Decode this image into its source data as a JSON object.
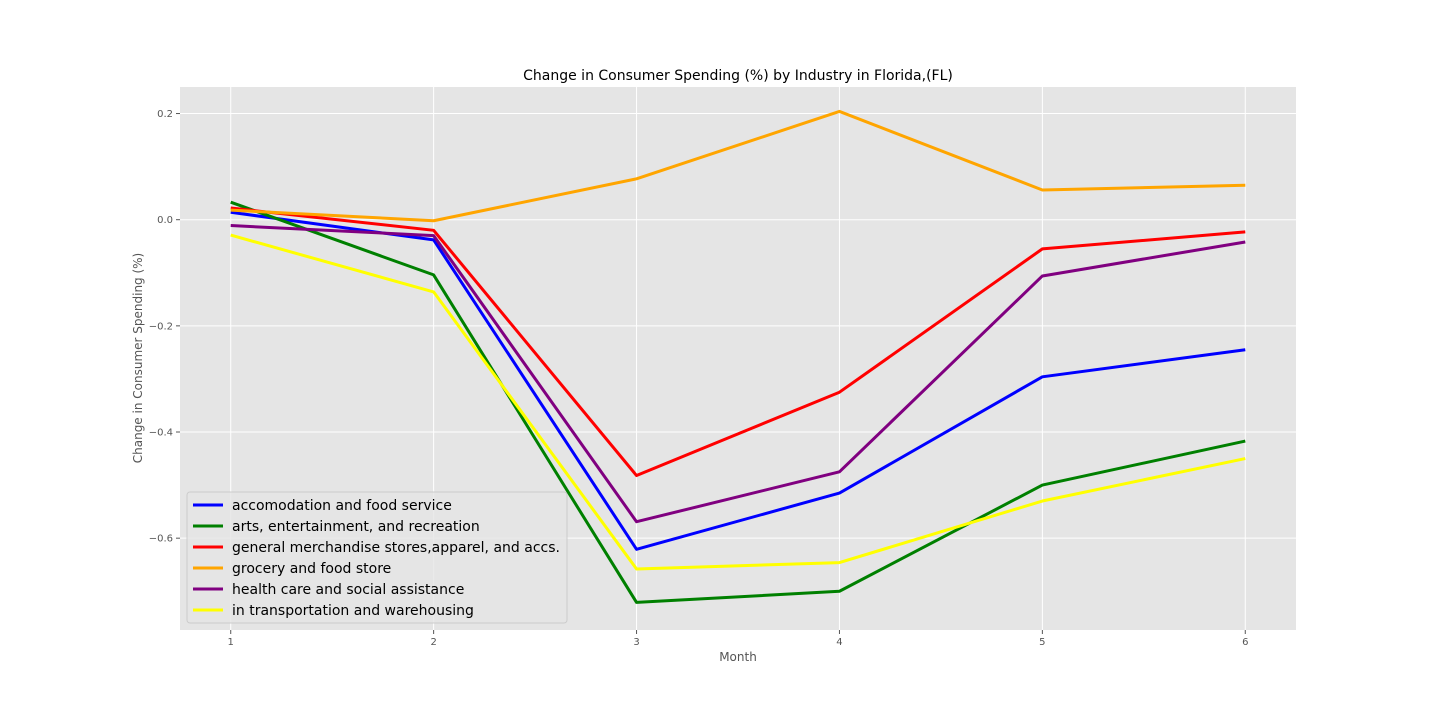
{
  "chart_data": {
    "type": "line",
    "title": "Change in Consumer Spending (%) by Industry in Florida,(FL)",
    "xlabel": "Month",
    "ylabel": "Change in Consumer Spending (%)",
    "x": [
      1,
      2,
      3,
      4,
      5,
      6
    ],
    "x_ticks": [
      "1",
      "2",
      "3",
      "4",
      "5",
      "6"
    ],
    "xlim": [
      0.75,
      6.25
    ],
    "y_ticks": [
      0.2,
      0.0,
      -0.2,
      -0.4,
      -0.6
    ],
    "y_tick_labels": [
      "0.2",
      "0.0",
      "−0.2",
      "−0.4",
      "−0.6"
    ],
    "ylim": [
      -0.773,
      0.25
    ],
    "grid": true,
    "legend_position": "lower-left",
    "plot_background": "#e5e5e5",
    "series": [
      {
        "name": "accomodation and food service",
        "color": "#0000ff",
        "values": [
          0.014,
          -0.038,
          -0.621,
          -0.515,
          -0.296,
          -0.245
        ]
      },
      {
        "name": "arts, entertainment, and recreation",
        "color": "#008000",
        "values": [
          0.033,
          -0.104,
          -0.721,
          -0.7,
          -0.5,
          -0.417
        ]
      },
      {
        "name": "general merchandise stores,apparel, and accs.",
        "color": "#ff0000",
        "values": [
          0.022,
          -0.02,
          -0.482,
          -0.325,
          -0.055,
          -0.023
        ]
      },
      {
        "name": "grocery and food store",
        "color": "#ffa500",
        "values": [
          0.018,
          -0.002,
          0.077,
          0.204,
          0.056,
          0.065
        ]
      },
      {
        "name": "health care and social assistance",
        "color": "#800080",
        "values": [
          -0.011,
          -0.03,
          -0.569,
          -0.475,
          -0.106,
          -0.042
        ]
      },
      {
        "name": "in transportation and warehousing",
        "color": "#ffff00",
        "values": [
          -0.029,
          -0.136,
          -0.658,
          -0.646,
          -0.53,
          -0.45
        ]
      }
    ]
  }
}
